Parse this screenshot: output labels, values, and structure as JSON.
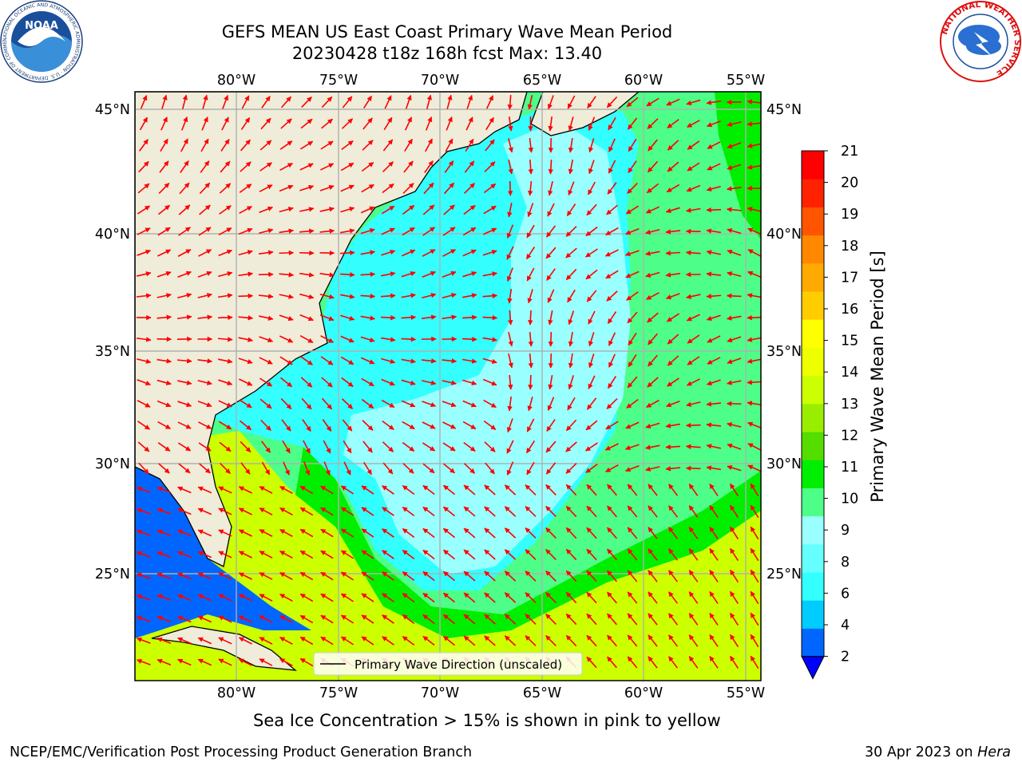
{
  "header": {
    "title_line1": "GEFS MEAN US East Coast Primary Wave Mean Period",
    "title_line2": "20230428 t18z 168h fcst   Max: 13.40"
  },
  "map": {
    "lon_labels": [
      "80°W",
      "75°W",
      "70°W",
      "65°W",
      "60°W",
      "55°W"
    ],
    "lat_labels": [
      "45°N",
      "40°N",
      "35°N",
      "30°N",
      "25°N"
    ],
    "legend_label": "Primary Wave Direction (unscaled)",
    "arrow_color": "#ff0000",
    "land_color": "#efecd9"
  },
  "colorbar": {
    "label": "Primary Wave Mean Period [s]",
    "ticks": [
      "2",
      "4",
      "6",
      "8",
      "9",
      "10",
      "11",
      "12",
      "13",
      "14",
      "15",
      "16",
      "17",
      "18",
      "19",
      "20",
      "21"
    ],
    "colors": [
      "#0066ff",
      "#00ccff",
      "#33ffff",
      "#66ffff",
      "#99ffff",
      "#4dff88",
      "#00ee00",
      "#55dd00",
      "#99ee00",
      "#ccff00",
      "#eeff00",
      "#ffff00",
      "#ffcc00",
      "#ffaa00",
      "#ff8800",
      "#ff5500",
      "#ff2200",
      "#ff0000"
    ],
    "under_color": "#0000ff"
  },
  "footer": {
    "sea_ice_note": "Sea Ice Concentration > 15% is shown in pink to yellow",
    "branch": "NCEP/EMC/Verification Post Processing Product Generation Branch",
    "date": "30 Apr 2023 on ",
    "machine": "Hera"
  },
  "logos": {
    "noaa_text": "NOAA",
    "noaa_ring_text": "NATIONAL OCEANIC AND ATMOSPHERIC ADMINISTRATION · U.S. DEPARTMENT OF COMMERCE",
    "nws_ring_text": "NATIONAL WEATHER SERVICE"
  }
}
